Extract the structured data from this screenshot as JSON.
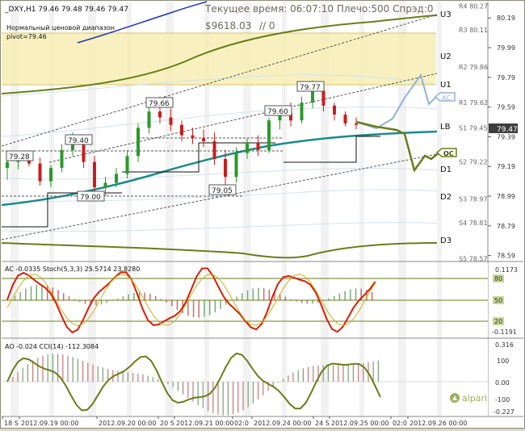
{
  "header": {
    "symbol_line": "_DXY,H1  79.46 79.48 79.46 79.47",
    "range_title": "Нормальный ценовой диапазон",
    "pivot": "pivot=79.46",
    "time_info": "Текущее время: 06:07:10 Плечо:500 Спрэд:0",
    "equity": "$9618.03",
    "slash": "// 0"
  },
  "levels": {
    "U3": "U3",
    "U2": "U2",
    "U1": "U1",
    "LB": "LB",
    "D1": "D1",
    "D2": "D2",
    "D3": "D3"
  },
  "price_axis": {
    "ticks": [
      "80.19",
      "79.99",
      "79.79",
      "79.59",
      "79.39",
      "79.19",
      "78.99",
      "78.79",
      "78.59"
    ],
    "level_labels": [
      {
        "text": "R4 80.27",
        "price": 80.27
      },
      {
        "text": "R3 80.11",
        "price": 80.11
      },
      {
        "text": "R2 79.86",
        "price": 79.86
      },
      {
        "text": "R1 79.62",
        "price": 79.62
      },
      {
        "text": "S1 79.45",
        "price": 79.45
      },
      {
        "text": "S2 79.22",
        "price": 79.22
      },
      {
        "text": "S3 78.97",
        "price": 78.97
      },
      {
        "text": "S4 78.81",
        "price": 78.81
      },
      {
        "text": "S5 78.57",
        "price": 78.57
      }
    ],
    "current_price": "79.47"
  },
  "price_labels": [
    "79.28",
    "79.40",
    "79.00",
    "79.66",
    "79.05",
    "79.60",
    "79.77"
  ],
  "markers": {
    "ac": "AC",
    "oc": "OC"
  },
  "subwindow1": {
    "title": "AC -0.0335  Stoch(5,3,3) 25.5714 23.8280",
    "ticks": [
      "0.1173",
      "80",
      "50",
      "20",
      "-0.1191"
    ]
  },
  "subwindow2": {
    "title": "AO -0.024  CCI(14) -112.3084",
    "ticks": [
      "0.316",
      "100",
      "0.00",
      "-100",
      "-0.227"
    ]
  },
  "time_axis": {
    "labels": [
      "18 S",
      "2012.09.19 00:00",
      "2012.09.20 00:00",
      "20 S",
      "2012.09.21 00:00",
      "02:0",
      "2012.09.24 00:00",
      "24 S",
      "2012.09.25 00:00",
      "02:0",
      "2012.09.26 00:00"
    ]
  },
  "branding": {
    "logo_text": "alpari"
  },
  "colors": {
    "bull": "#2a9a2a",
    "bear": "#c81e1e",
    "band": "#6b7d1a",
    "teal": "#1a8a8a",
    "zone": "#f7eeb4",
    "forecast": "#8fb3d9"
  },
  "chart_data": {
    "type": "line",
    "title": "",
    "candles_ohlc_approx": [
      [
        79.18,
        79.26,
        79.1,
        79.22
      ],
      [
        79.22,
        79.29,
        79.17,
        79.27
      ],
      [
        79.27,
        79.3,
        79.19,
        79.21
      ],
      [
        79.21,
        79.25,
        79.06,
        79.09
      ],
      [
        79.09,
        79.2,
        79.05,
        79.18
      ],
      [
        79.18,
        79.34,
        79.15,
        79.3
      ],
      [
        79.3,
        79.42,
        79.26,
        79.36
      ],
      [
        79.36,
        79.4,
        79.18,
        79.22
      ],
      [
        79.22,
        79.26,
        79.02,
        79.05
      ],
      [
        79.05,
        79.12,
        78.99,
        79.08
      ],
      [
        79.08,
        79.18,
        79.05,
        79.14
      ],
      [
        79.14,
        79.3,
        79.11,
        79.26
      ],
      [
        79.26,
        79.48,
        79.22,
        79.45
      ],
      [
        79.45,
        79.6,
        79.41,
        79.56
      ],
      [
        79.56,
        79.66,
        79.48,
        79.52
      ],
      [
        79.52,
        79.58,
        79.43,
        79.47
      ],
      [
        79.47,
        79.5,
        79.36,
        79.4
      ],
      [
        79.4,
        79.45,
        79.34,
        79.38
      ],
      [
        79.38,
        79.44,
        79.32,
        79.36
      ],
      [
        79.36,
        79.42,
        79.2,
        79.24
      ],
      [
        79.24,
        79.3,
        79.05,
        79.12
      ],
      [
        79.12,
        79.32,
        79.08,
        79.28
      ],
      [
        79.28,
        79.38,
        79.24,
        79.35
      ],
      [
        79.35,
        79.4,
        79.26,
        79.3
      ],
      [
        79.3,
        79.52,
        79.28,
        79.5
      ],
      [
        79.5,
        79.6,
        79.44,
        79.55
      ],
      [
        79.55,
        79.62,
        79.46,
        79.5
      ],
      [
        79.5,
        79.66,
        79.48,
        79.62
      ],
      [
        79.62,
        79.77,
        79.58,
        79.7
      ],
      [
        79.7,
        79.74,
        79.56,
        79.6
      ],
      [
        79.6,
        79.62,
        79.5,
        79.54
      ],
      [
        79.54,
        79.56,
        79.46,
        79.48
      ],
      [
        79.48,
        79.52,
        79.44,
        79.47
      ]
    ],
    "ylim": [
      78.55,
      80.3
    ]
  }
}
